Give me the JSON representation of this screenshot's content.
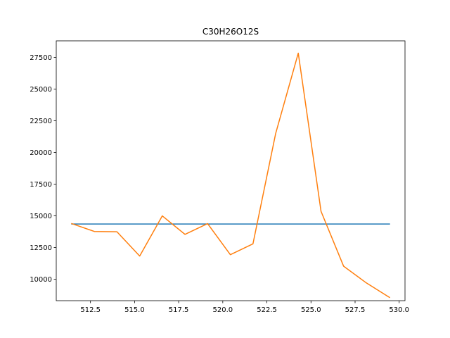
{
  "chart_data": {
    "type": "line",
    "title": "C30H26O12S",
    "xlabel": "",
    "ylabel": "",
    "xlim": [
      510.56,
      530.33
    ],
    "ylim": [
      8300,
      28800
    ],
    "grid": false,
    "x_ticks": [
      512.5,
      515.0,
      517.5,
      520.0,
      522.5,
      525.0,
      527.5,
      530.0
    ],
    "x_tick_labels": [
      "512.5",
      "515.0",
      "517.5",
      "520.0",
      "522.5",
      "525.0",
      "527.5",
      "530.0"
    ],
    "y_ticks": [
      10000,
      12500,
      15000,
      17500,
      20000,
      22500,
      25000,
      27500
    ],
    "y_tick_labels": [
      "10000",
      "12500",
      "15000",
      "17500",
      "20000",
      "22500",
      "25000",
      "27500"
    ],
    "series": [
      {
        "color": "#1f77b4",
        "x": [
          511.44,
          529.45
        ],
        "y": [
          14350,
          14350
        ]
      },
      {
        "color": "#ff7f0e",
        "x": [
          511.44,
          512.72,
          514.0,
          515.29,
          516.57,
          517.86,
          519.14,
          520.43,
          521.71,
          523.0,
          524.28,
          525.57,
          526.85,
          528.14,
          529.45
        ],
        "y": [
          14380,
          13760,
          13740,
          11820,
          14990,
          13530,
          14380,
          11930,
          12780,
          21500,
          27830,
          15350,
          11020,
          9700,
          8560
        ]
      }
    ]
  }
}
